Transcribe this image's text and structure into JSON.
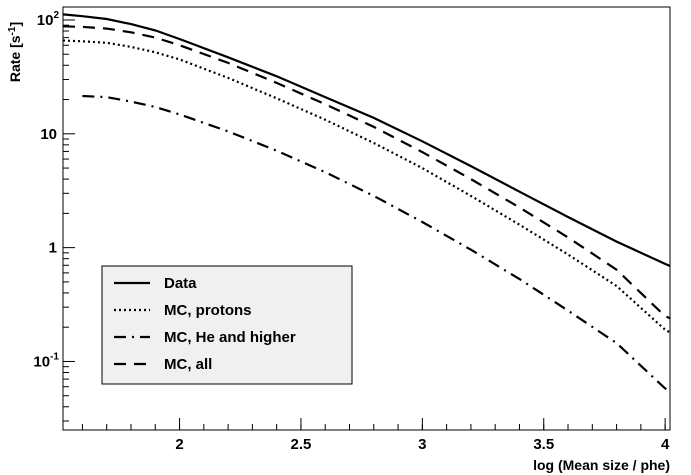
{
  "chart_data": {
    "type": "line",
    "xlabel": "log (Mean size / phe)",
    "ylabel": "Rate [s",
    "ylabel_sup": "-1",
    "ylabel_tail": "]",
    "y_log_scale": true,
    "xlim": [
      1.52,
      4.02
    ],
    "ylim": [
      0.025,
      130
    ],
    "grid": false,
    "legend_position": "bottom-left",
    "x_ticks": [
      {
        "value": 2,
        "label": "2"
      },
      {
        "value": 2.5,
        "label": "2.5"
      },
      {
        "value": 3,
        "label": "3"
      },
      {
        "value": 3.5,
        "label": "3.5"
      },
      {
        "value": 4,
        "label": "4"
      }
    ],
    "y_ticks": [
      {
        "value": 100,
        "base": "10",
        "exp": "2"
      },
      {
        "value": 10,
        "base": "10",
        "exp": ""
      },
      {
        "value": 1,
        "base": "1",
        "exp": ""
      },
      {
        "value": 0.1,
        "base": "10",
        "exp": "-1"
      }
    ],
    "x": [
      1.52,
      1.6,
      1.7,
      1.8,
      1.9,
      2.0,
      2.2,
      2.4,
      2.6,
      2.8,
      3.0,
      3.2,
      3.4,
      3.6,
      3.8,
      4.0,
      4.02
    ],
    "series": [
      {
        "name": "Data",
        "style": "solid",
        "values": [
          112,
          108,
          102,
          92,
          81,
          68,
          47,
          32,
          21,
          13.8,
          8.6,
          5.2,
          3.1,
          1.86,
          1.13,
          0.72,
          0.69
        ]
      },
      {
        "name": "MC, protons",
        "style": "dotted",
        "values": [
          66,
          65,
          63,
          58,
          52,
          45,
          31,
          20.5,
          13.3,
          8.3,
          5.0,
          2.85,
          1.59,
          0.87,
          0.46,
          0.19,
          0.18
        ]
      },
      {
        "name": "MC, He and higher",
        "style": "dashdot",
        "values": [
          null,
          21.5,
          21,
          19.2,
          17.2,
          14.8,
          10.5,
          7.1,
          4.6,
          2.85,
          1.68,
          0.96,
          0.53,
          0.28,
          0.145,
          0.058,
          0.055
        ]
      },
      {
        "name": "MC, all",
        "style": "dashed",
        "values": [
          88,
          87,
          84,
          78,
          70,
          60,
          42,
          28,
          18.2,
          11.5,
          6.9,
          4.0,
          2.25,
          1.23,
          0.64,
          0.25,
          0.24
        ]
      }
    ]
  }
}
